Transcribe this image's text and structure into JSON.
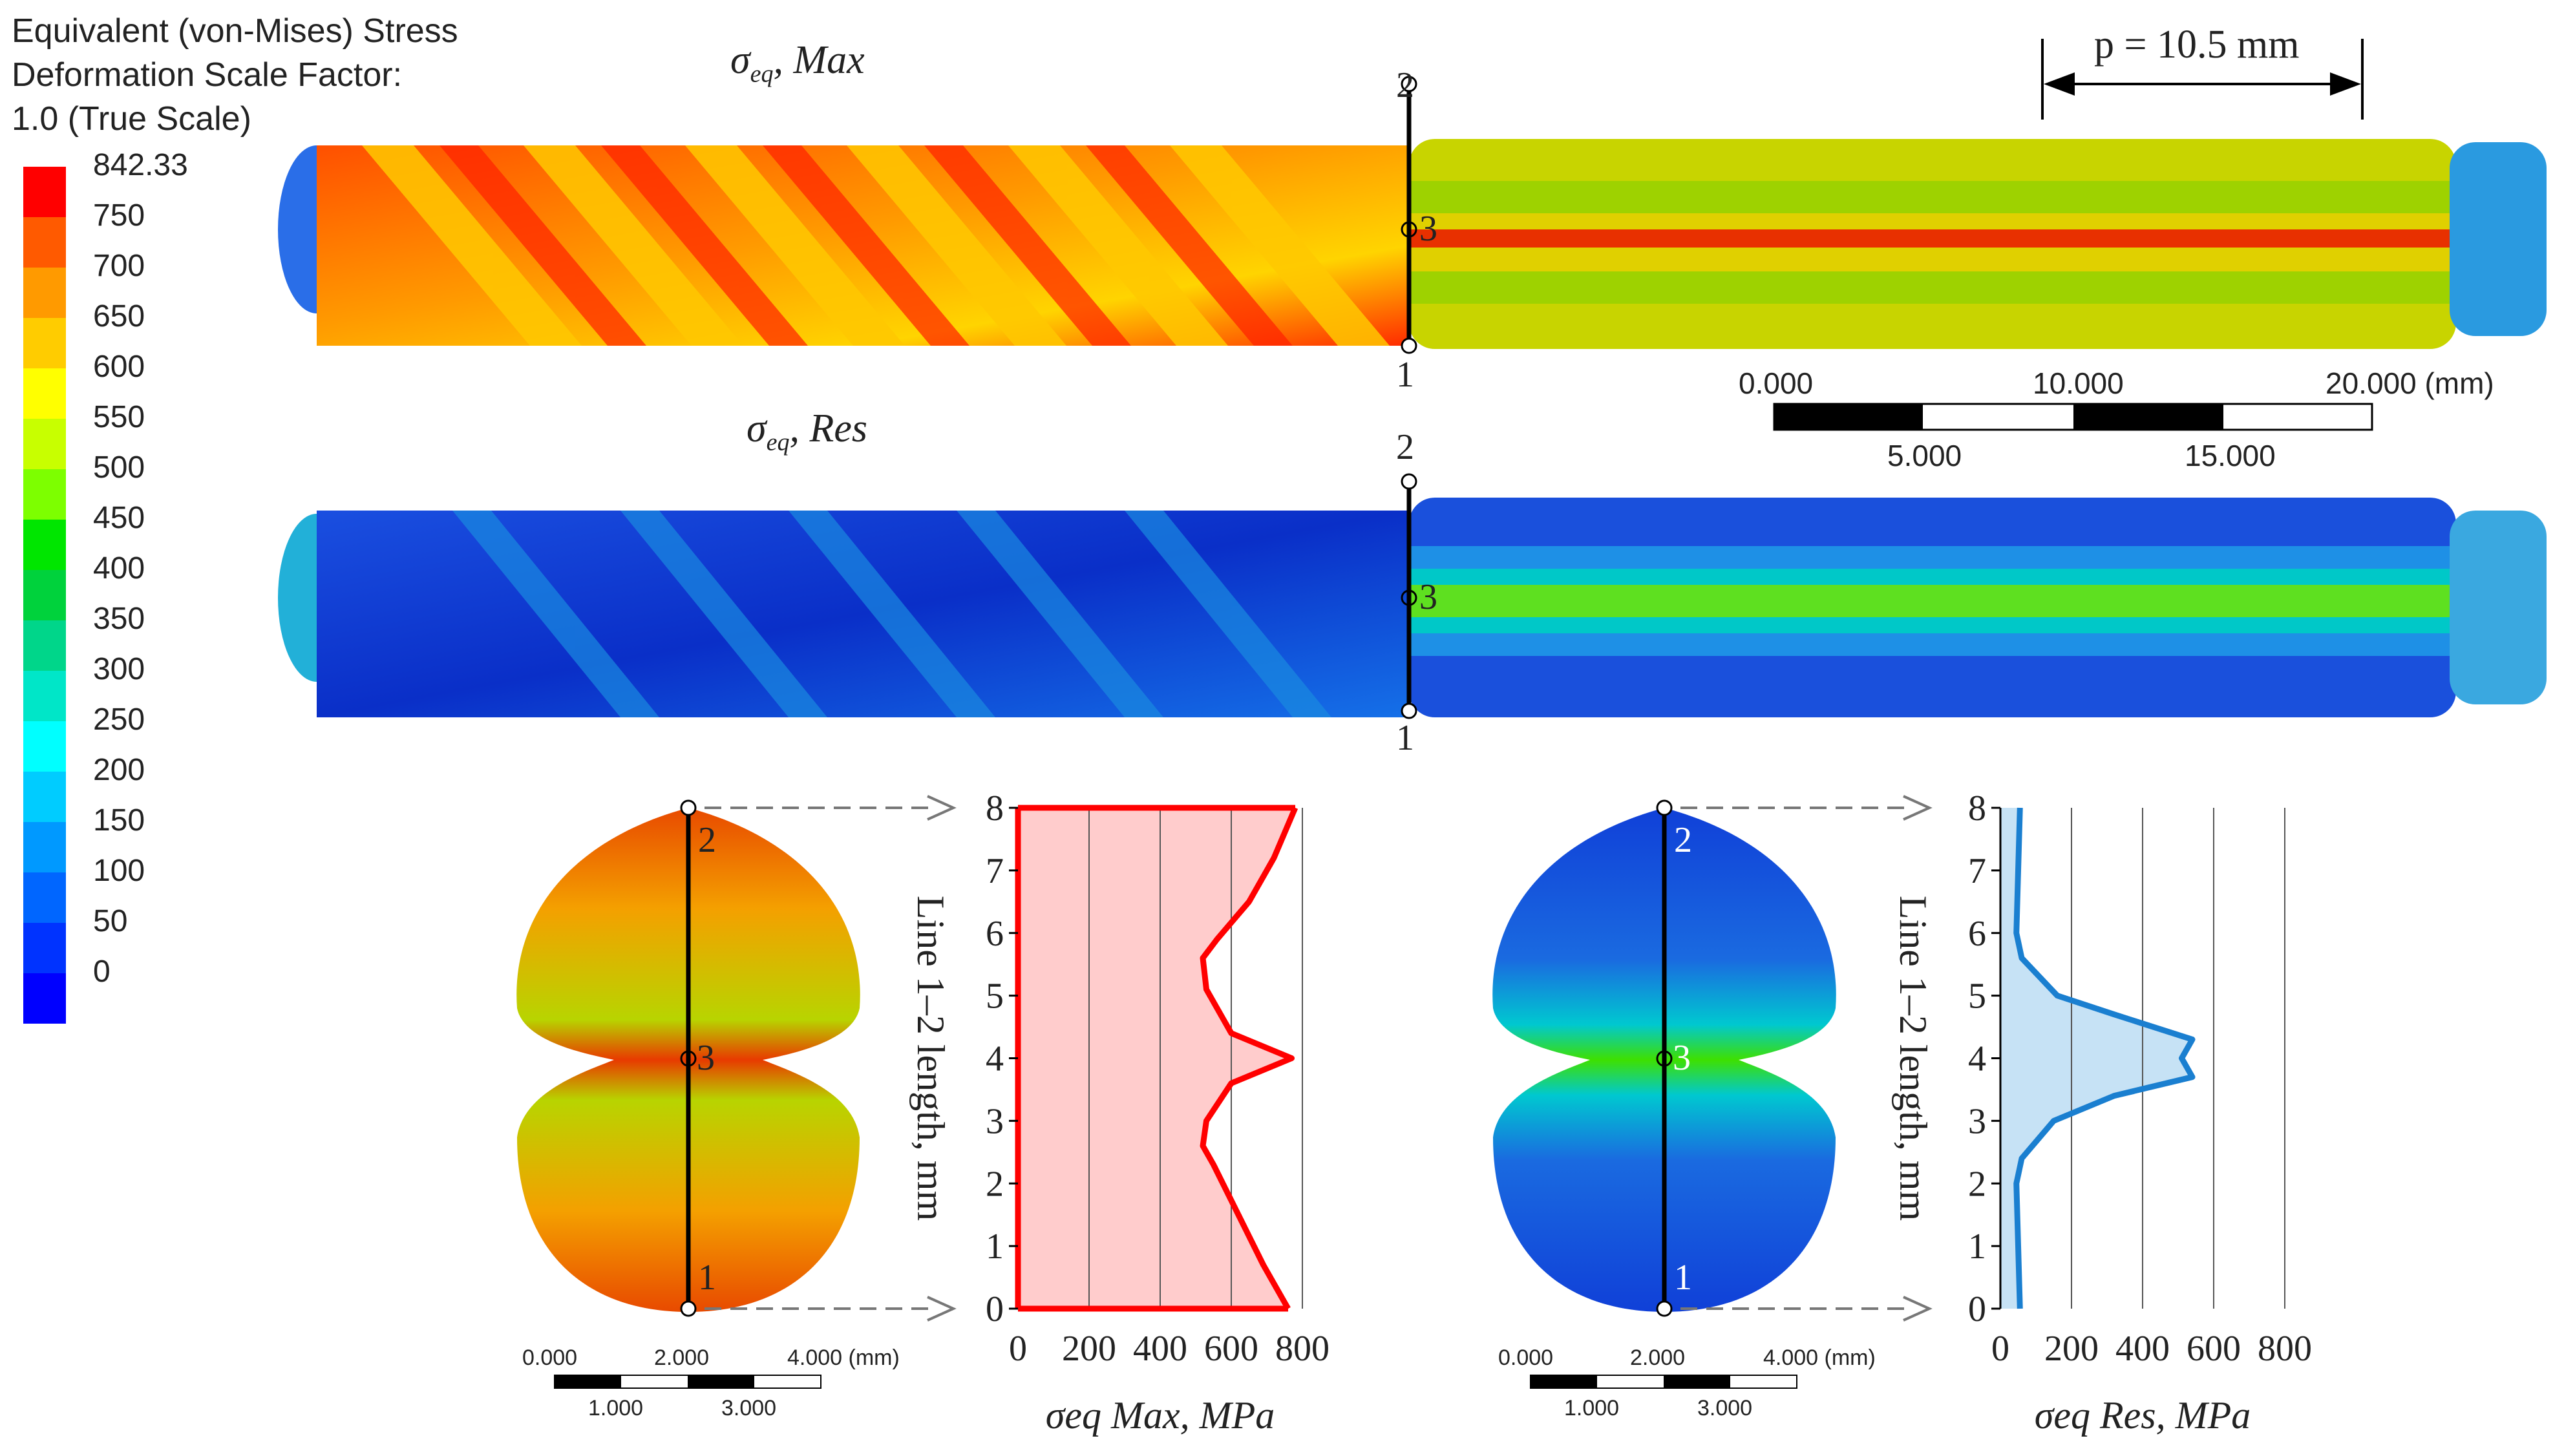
{
  "legend": {
    "title_lines": [
      "Equivalent (von-Mises) Stress",
      "Deformation Scale Factor:",
      "1.0 (True Scale)"
    ],
    "labels": [
      "842.33",
      "750",
      "700",
      "650",
      "600",
      "550",
      "500",
      "450",
      "400",
      "350",
      "300",
      "250",
      "200",
      "150",
      "100",
      "50",
      "0"
    ],
    "colors": [
      "#ff0000",
      "#ff5a00",
      "#ff9a00",
      "#ffcc00",
      "#ffff00",
      "#c8ff00",
      "#7dff00",
      "#00e600",
      "#00d23c",
      "#00d68a",
      "#00e6c8",
      "#00ffff",
      "#00ccff",
      "#0099ff",
      "#0066ff",
      "#0033ff",
      "#0000ff"
    ]
  },
  "shaft_top": {
    "label_symbol": "σ",
    "label_sub": "eq",
    "label_text": ", Max",
    "point_labels": [
      "2",
      "3",
      "1"
    ],
    "pitch_label": "p = 10.5 mm"
  },
  "shaft_bottom": {
    "label_symbol": "σ",
    "label_sub": "eq",
    "label_text": ", Res",
    "point_labels": [
      "2",
      "3",
      "1"
    ]
  },
  "big_scale": {
    "top_labels": [
      "0.000",
      "10.000",
      "20.000 (mm)"
    ],
    "bottom_labels": [
      "5.000",
      "15.000"
    ]
  },
  "small_scale_left": {
    "top_labels": [
      "0.000",
      "2.000",
      "4.000 (mm)"
    ],
    "bottom_labels": [
      "1.000",
      "3.000"
    ]
  },
  "small_scale_right": {
    "top_labels": [
      "0.000",
      "2.000",
      "4.000 (mm)"
    ],
    "bottom_labels": [
      "1.000",
      "3.000"
    ]
  },
  "section_left": {
    "point_labels": [
      "2",
      "3",
      "1"
    ]
  },
  "section_right": {
    "point_labels": [
      "2",
      "3",
      "1"
    ]
  },
  "colors": {
    "max_line": "#ff0000",
    "max_fill": "#ffcccc",
    "res_line": "#1a7fd0",
    "res_fill": "#c6e2f5"
  },
  "chart_data": [
    {
      "type": "area",
      "title": "",
      "xlabel": "σeq Max, MPa",
      "ylabel": "Line 1–2 length, mm",
      "xlim": [
        0,
        800
      ],
      "ylim": [
        0,
        8
      ],
      "x_ticks": [
        "0",
        "200",
        "400",
        "600",
        "800"
      ],
      "y_ticks": [
        "0",
        "1",
        "2",
        "3",
        "4",
        "5",
        "6",
        "7",
        "8"
      ],
      "points": [
        {
          "x": 760,
          "y": 0
        },
        {
          "x": 690,
          "y": 0.7
        },
        {
          "x": 620,
          "y": 1.5
        },
        {
          "x": 550,
          "y": 2.3
        },
        {
          "x": 520,
          "y": 2.6
        },
        {
          "x": 530,
          "y": 3.0
        },
        {
          "x": 600,
          "y": 3.6
        },
        {
          "x": 770,
          "y": 4.0
        },
        {
          "x": 600,
          "y": 4.4
        },
        {
          "x": 530,
          "y": 5.1
        },
        {
          "x": 520,
          "y": 5.6
        },
        {
          "x": 560,
          "y": 5.9
        },
        {
          "x": 650,
          "y": 6.5
        },
        {
          "x": 720,
          "y": 7.2
        },
        {
          "x": 780,
          "y": 8.0
        }
      ]
    },
    {
      "type": "area",
      "title": "",
      "xlabel": "σeq Res, MPa",
      "ylabel": "Line 1–2 length, mm",
      "xlim": [
        0,
        800
      ],
      "ylim": [
        0,
        8
      ],
      "x_ticks": [
        "0",
        "200",
        "400",
        "600",
        "800"
      ],
      "y_ticks": [
        "0",
        "1",
        "2",
        "3",
        "4",
        "5",
        "6",
        "7",
        "8"
      ],
      "points": [
        {
          "x": 55,
          "y": 0
        },
        {
          "x": 50,
          "y": 1.0
        },
        {
          "x": 45,
          "y": 2.0
        },
        {
          "x": 60,
          "y": 2.4
        },
        {
          "x": 150,
          "y": 3.0
        },
        {
          "x": 320,
          "y": 3.4
        },
        {
          "x": 540,
          "y": 3.7
        },
        {
          "x": 510,
          "y": 4.0
        },
        {
          "x": 540,
          "y": 4.3
        },
        {
          "x": 320,
          "y": 4.7
        },
        {
          "x": 160,
          "y": 5.0
        },
        {
          "x": 60,
          "y": 5.6
        },
        {
          "x": 45,
          "y": 6.0
        },
        {
          "x": 50,
          "y": 7.0
        },
        {
          "x": 55,
          "y": 8.0
        }
      ]
    }
  ]
}
